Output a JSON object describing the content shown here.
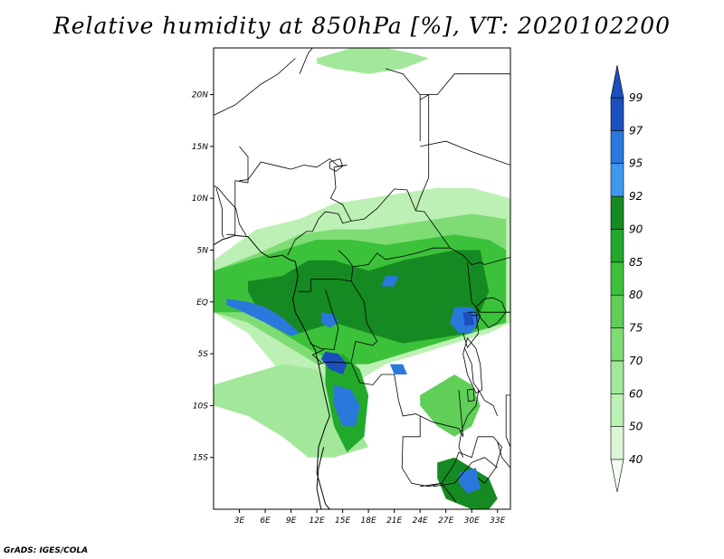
{
  "title": "Relative humidity at 850hPa [%], VT: 2020102200",
  "credit": "GrADS: IGES/COLA",
  "map": {
    "projection": "latlon",
    "lon_range": [
      0,
      34.5
    ],
    "lat_range": [
      -20,
      24.5
    ],
    "lon_ticks": [
      {
        "value": 3,
        "label": "3E"
      },
      {
        "value": 6,
        "label": "6E"
      },
      {
        "value": 9,
        "label": "9E"
      },
      {
        "value": 12,
        "label": "12E"
      },
      {
        "value": 15,
        "label": "15E"
      },
      {
        "value": 18,
        "label": "18E"
      },
      {
        "value": 21,
        "label": "21E"
      },
      {
        "value": 24,
        "label": "24E"
      },
      {
        "value": 27,
        "label": "27E"
      },
      {
        "value": 30,
        "label": "30E"
      },
      {
        "value": 33,
        "label": "33E"
      }
    ],
    "lat_ticks": [
      {
        "value": 20,
        "label": "20N"
      },
      {
        "value": 15,
        "label": "15N"
      },
      {
        "value": 10,
        "label": "10N"
      },
      {
        "value": 5,
        "label": "5N"
      },
      {
        "value": 0,
        "label": "EQ"
      },
      {
        "value": -5,
        "label": "5S"
      },
      {
        "value": -10,
        "label": "10S"
      },
      {
        "value": -15,
        "label": "15S"
      }
    ]
  },
  "colorbar": {
    "levels": [
      "40",
      "50",
      "60",
      "70",
      "75",
      "80",
      "85",
      "90",
      "92",
      "95",
      "97",
      "99"
    ],
    "colors": [
      "#f3fdf2",
      "#dcf7d7",
      "#bdf0b4",
      "#a3e89a",
      "#7fdc75",
      "#5fcf57",
      "#3cc13a",
      "#22a92b",
      "#168a22",
      "#3d99f0",
      "#2a78dc",
      "#1a4fbd",
      "#1a4fbd"
    ]
  },
  "regions": [
    {
      "level": "50",
      "lons": [
        0,
        5,
        10,
        14,
        18,
        22,
        26,
        30,
        34.5,
        34.5,
        32,
        28,
        24,
        20,
        16,
        12,
        8,
        4,
        0
      ],
      "lats": [
        4,
        7,
        8,
        9.5,
        10,
        10.5,
        11,
        11,
        10,
        -2,
        -3,
        -4,
        -5,
        -6,
        -8,
        -9,
        -7,
        -3,
        -1
      ]
    },
    {
      "level": "70",
      "lons": [
        0,
        6,
        10,
        14,
        18,
        22,
        26,
        30,
        34,
        34,
        30,
        26,
        22,
        18,
        15,
        12,
        8,
        4,
        0
      ],
      "lats": [
        3,
        5,
        6.5,
        7,
        7,
        7.5,
        8,
        8.5,
        8,
        1,
        0,
        -1,
        -3,
        -4,
        -6,
        -6,
        -4,
        -2,
        -1
      ]
    },
    {
      "level": "80",
      "lons": [
        0,
        4,
        8,
        12,
        16,
        20,
        24,
        28,
        32,
        34,
        34,
        30,
        26,
        22,
        18,
        15,
        12,
        8,
        4,
        0
      ],
      "lats": [
        3,
        4,
        5,
        6,
        6,
        5.5,
        6,
        6.5,
        6,
        5,
        -2,
        -3,
        -4,
        -5,
        -6,
        -6,
        -5,
        -3,
        -1,
        -1
      ]
    },
    {
      "level": "90",
      "lons": [
        4,
        8,
        11,
        14,
        18,
        22,
        25,
        28,
        31,
        32,
        30,
        26,
        22,
        18,
        14,
        10,
        6,
        4
      ],
      "lats": [
        2,
        2.5,
        4,
        4,
        3,
        4,
        4.5,
        5,
        5,
        1,
        -3,
        -3.5,
        -4,
        -3,
        -2,
        -3,
        -2,
        1
      ]
    },
    {
      "level": "60",
      "lons": [
        0,
        4,
        8,
        12,
        14,
        16,
        18,
        14,
        11,
        8,
        4,
        0
      ],
      "lats": [
        -8,
        -7,
        -6,
        -6.5,
        -8,
        -11,
        -14,
        -15,
        -15,
        -13,
        -11,
        -10
      ]
    },
    {
      "level": "85",
      "lons": [
        13,
        15,
        17,
        18,
        17.5,
        15.5,
        14,
        13
      ],
      "lats": [
        -6,
        -5,
        -6.5,
        -9,
        -13,
        -14.5,
        -12,
        -8
      ]
    },
    {
      "level": "75",
      "lons": [
        24,
        26,
        28,
        30,
        31,
        30,
        28,
        26,
        24
      ],
      "lats": [
        -10,
        -12,
        -13,
        -12,
        -10,
        -8,
        -7,
        -8,
        -9
      ]
    },
    {
      "level": "90",
      "lons": [
        26,
        28,
        30,
        32,
        33,
        32,
        30,
        27,
        26
      ],
      "lats": [
        -15.5,
        -15,
        -16,
        -17,
        -19,
        -20,
        -20,
        -19,
        -17
      ]
    },
    {
      "level": "60",
      "lons": [
        12,
        16,
        20,
        23,
        25,
        22,
        18,
        14,
        12
      ],
      "lats": [
        23.5,
        24.5,
        24.5,
        24,
        23.5,
        22.5,
        22,
        22.5,
        23
      ]
    },
    {
      "level": "95",
      "lons": [
        1.5,
        4,
        6,
        8,
        10,
        9,
        6,
        3,
        1.5
      ],
      "lats": [
        0.3,
        0,
        -0.5,
        -1.5,
        -3,
        -3.3,
        -2,
        -0.8,
        -0.3
      ]
    },
    {
      "level": "97",
      "lons": [
        13,
        14.5,
        15.5,
        15,
        13.5,
        12.5
      ],
      "lats": [
        -4.8,
        -5,
        -6,
        -7,
        -6.5,
        -5.5
      ]
    },
    {
      "level": "95",
      "lons": [
        14,
        16,
        17,
        16.5,
        15,
        14
      ],
      "lats": [
        -8,
        -8.5,
        -10,
        -12,
        -12,
        -10
      ]
    },
    {
      "level": "95",
      "lons": [
        12.5,
        14,
        14.5,
        13.5,
        12.5
      ],
      "lats": [
        -1,
        -1.2,
        -2,
        -2.5,
        -2
      ]
    },
    {
      "level": "95",
      "lons": [
        28,
        30,
        31,
        30,
        28.5,
        27.5
      ],
      "lats": [
        -0.5,
        -0.5,
        -1.5,
        -3,
        -3,
        -2
      ]
    },
    {
      "level": "95",
      "lons": [
        20,
        21.5,
        21,
        19.5
      ],
      "lats": [
        2.5,
        2.5,
        1.5,
        1.5
      ]
    },
    {
      "level": "95",
      "lons": [
        20.5,
        22,
        22.5,
        21
      ],
      "lats": [
        -6,
        -6,
        -7,
        -7
      ]
    },
    {
      "level": "97",
      "lons": [
        29,
        30,
        30.3,
        29.2
      ],
      "lats": [
        -1,
        -1,
        -2.2,
        -2.3
      ]
    },
    {
      "level": "95",
      "lons": [
        28.5,
        30.5,
        31,
        29.5,
        28.5
      ],
      "lats": [
        -16.5,
        -16,
        -18,
        -18.5,
        -17.5
      ]
    }
  ],
  "borders": [
    {
      "lons": [
        3.8,
        3,
        2.6,
        1.5,
        0.5,
        0
      ],
      "lats": [
        6.4,
        7.5,
        9,
        10,
        11,
        11.2
      ]
    },
    {
      "lons": [
        3,
        4,
        5.5,
        8,
        9,
        10.5,
        12,
        13.5,
        14.5,
        15.5
      ],
      "lats": [
        11.7,
        11.8,
        13.5,
        13,
        12.8,
        13.2,
        13,
        13.8,
        13.1,
        13.2
      ]
    },
    {
      "lons": [
        15.5,
        14,
        14.2,
        13.6,
        15,
        16
      ],
      "lats": [
        13.2,
        13,
        11,
        10,
        9.4,
        7.8
      ]
    },
    {
      "lons": [
        8.6,
        9.5,
        10.8,
        11.5,
        12.2,
        13,
        14.5,
        15,
        16
      ],
      "lats": [
        4.5,
        6,
        6.8,
        6.8,
        8,
        8.7,
        8.5,
        7.6,
        7.8
      ]
    },
    {
      "lons": [
        16,
        17.5,
        19,
        21,
        22.5,
        23.5,
        24.5,
        27.5
      ],
      "lats": [
        7.8,
        8,
        9,
        10.9,
        10.8,
        8.8,
        8.7,
        5.2
      ]
    },
    {
      "lons": [
        14.5,
        15.5,
        16.2,
        18,
        19,
        20,
        22,
        24,
        25.5,
        27.5
      ],
      "lats": [
        5,
        4.2,
        3.4,
        3.6,
        4.7,
        4.1,
        4.4,
        4.8,
        5.2,
        5.2
      ]
    },
    {
      "lons": [
        27.5,
        29,
        30,
        31,
        31.5,
        34.5
      ],
      "lats": [
        5.2,
        4.5,
        3.6,
        3.8,
        3.6,
        4.3
      ]
    },
    {
      "lons": [
        11.3,
        13,
        14.5,
        16,
        16.2
      ],
      "lats": [
        2.2,
        2.2,
        2.2,
        2,
        3.4
      ]
    },
    {
      "lons": [
        9.8,
        11.3,
        11.3
      ],
      "lats": [
        1,
        1,
        2.2
      ]
    },
    {
      "lons": [
        11.2,
        12.5,
        14,
        14.5,
        13.8,
        13
      ],
      "lats": [
        -4,
        -4.5,
        -4.6,
        -2.5,
        -1,
        1.2
      ]
    },
    {
      "lons": [
        16,
        17.5,
        17.8,
        19,
        18.5,
        16.5,
        16
      ],
      "lats": [
        2,
        0,
        -2,
        -3.8,
        -4.2,
        -3.8,
        -5.8
      ]
    },
    {
      "lons": [
        12.2,
        13,
        14,
        16,
        17,
        18.5,
        19.5,
        21,
        21.5,
        22,
        23.5,
        24
      ],
      "lats": [
        -6,
        -5.8,
        -5.8,
        -5.9,
        -7.8,
        -8,
        -7,
        -7,
        -9.5,
        -11,
        -10.8,
        -11
      ]
    },
    {
      "lons": [
        24,
        24,
        22,
        21.9,
        23,
        25,
        26.5,
        28,
        28.5,
        30,
        30.7
      ],
      "lats": [
        -11,
        -13,
        -13,
        -16,
        -17.5,
        -17.8,
        -17.5,
        -15.6,
        -14.5,
        -15,
        -13
      ]
    },
    {
      "lons": [
        24,
        25.5,
        27.5,
        28.5,
        29,
        28.5
      ],
      "lats": [
        -11,
        -11.6,
        -12,
        -12.2,
        -13,
        -8.5
      ]
    },
    {
      "lons": [
        29.2,
        30,
        30.2,
        30.8,
        30.5,
        29.5,
        28.8,
        28.5,
        29
      ],
      "lats": [
        -4.5,
        -6,
        -7.8,
        -8.5,
        -10,
        -11,
        -12.5,
        -14,
        -15
      ]
    },
    {
      "lons": [
        30.8,
        31.5,
        32.5,
        33
      ],
      "lats": [
        -8.5,
        -9.5,
        -10,
        -11
      ]
    },
    {
      "lons": [
        29.5,
        30.5,
        30.8,
        29.5,
        29
      ],
      "lats": [
        -1,
        -1,
        -3,
        -4.4,
        -3
      ]
    },
    {
      "lons": [
        30,
        31,
        30.5,
        30.4
      ],
      "lats": [
        -1.3,
        -1.3,
        -2.5,
        -2.6
      ]
    },
    {
      "lons": [
        29.5,
        30,
        31,
        31.5,
        33.5
      ],
      "lats": [
        3.8,
        0,
        -1,
        -1,
        -1
      ]
    },
    {
      "lons": [
        33,
        33.5,
        34.5
      ],
      "lats": [
        -13.5,
        -15,
        -16
      ]
    },
    {
      "lons": [
        30.7,
        32.5,
        33.5,
        32.8,
        31.5,
        30.7
      ],
      "lats": [
        -13,
        -13,
        -14,
        -16,
        -17.5,
        -17
      ]
    },
    {
      "lons": [
        24,
        26.5,
        28.2
      ],
      "lats": [
        -17.8,
        -17.5,
        -19.3
      ]
    },
    {
      "lons": [
        25.5,
        28,
        29,
        30,
        31.5,
        33
      ],
      "lats": [
        -17.8,
        -17.5,
        -16.5,
        -15.5,
        -15,
        -16
      ]
    },
    {
      "lons": [
        12.5,
        11.5,
        12.8
      ],
      "lats": [
        -5.8,
        -5.1,
        -4.6
      ]
    },
    {
      "lons": [
        20,
        22,
        24,
        24,
        24
      ],
      "lats": [
        22.5,
        22,
        20,
        19.5,
        15.5
      ]
    },
    {
      "lons": [
        24,
        25,
        25,
        24,
        23.5
      ],
      "lats": [
        19.5,
        20,
        12,
        10,
        8.8
      ]
    },
    {
      "lons": [
        24,
        27,
        30,
        34.5
      ],
      "lats": [
        15,
        15.5,
        14.5,
        13.2
      ]
    },
    {
      "lons": [
        24,
        26,
        28,
        30
      ],
      "lats": [
        20,
        20,
        22,
        22
      ]
    },
    {
      "lons": [
        30,
        34.5
      ],
      "lats": [
        22,
        22
      ]
    },
    {
      "lons": [
        10,
        11,
        11.5
      ],
      "lats": [
        22,
        24,
        24.5
      ]
    },
    {
      "lons": [
        0,
        2.5,
        4,
        5.5,
        7.5,
        9.5
      ],
      "lats": [
        18,
        19,
        20,
        21,
        22,
        23.5
      ]
    },
    {
      "lons": [
        2.5,
        4,
        4,
        3
      ],
      "lats": [
        11.7,
        11.5,
        14,
        15
      ]
    },
    {
      "lons": [
        1.5,
        2.5,
        2.5
      ],
      "lats": [
        6.5,
        6.5,
        11.7
      ]
    },
    {
      "lons": [
        0.3,
        1,
        1,
        1.2
      ],
      "lats": [
        11,
        9,
        6.5,
        6.2
      ]
    }
  ],
  "coast": [
    {
      "lons": [
        0,
        1,
        2.5,
        4,
        5.5,
        6.5,
        8,
        8.8,
        9.5,
        9.8,
        9.5,
        9.2,
        9.5,
        10.5,
        11.2,
        11.8,
        12.2,
        12.8,
        13.5,
        13,
        12.2,
        12,
        12.5,
        13,
        13.5,
        12.5,
        12,
        12.2,
        12.8
      ],
      "lats": [
        5.5,
        6,
        6.4,
        6.3,
        4.8,
        4.3,
        4.5,
        4.1,
        3.9,
        2.5,
        1.2,
        0.3,
        -1,
        -2.5,
        -3.8,
        -4.6,
        -6,
        -8.5,
        -11,
        -12,
        -14,
        -16.5,
        -18,
        -19.5,
        -20,
        -20,
        -18,
        -16,
        -14
      ]
    },
    {
      "lons": [
        33.5,
        34.5
      ],
      "lats": [
        -1,
        -1
      ]
    }
  ],
  "lakes": [
    {
      "lons": [
        30.5,
        31.5,
        32.5,
        33.5,
        34,
        33,
        32,
        31,
        30.5
      ],
      "lats": [
        -0.5,
        0.3,
        0.4,
        0,
        -1,
        -2,
        -2.5,
        -1.5,
        -0.5
      ]
    },
    {
      "lons": [
        29.5,
        30.5,
        31,
        31.2,
        30.5,
        29.5,
        29
      ],
      "lats": [
        -3.5,
        -4.5,
        -6,
        -8.5,
        -8.8,
        -7,
        -5
      ]
    },
    {
      "lons": [
        34,
        34.5,
        34.5,
        34
      ],
      "lats": [
        -9,
        -9,
        -14,
        -13
      ]
    },
    {
      "lons": [
        13.5,
        14.7,
        15,
        14.2,
        13.5
      ],
      "lats": [
        13.5,
        13.8,
        13.1,
        12.6,
        12.9
      ]
    },
    {
      "lons": [
        29.5,
        30.2,
        30.3,
        29.6
      ],
      "lats": [
        -8.5,
        -8.4,
        -9.5,
        -9.6
      ]
    }
  ]
}
